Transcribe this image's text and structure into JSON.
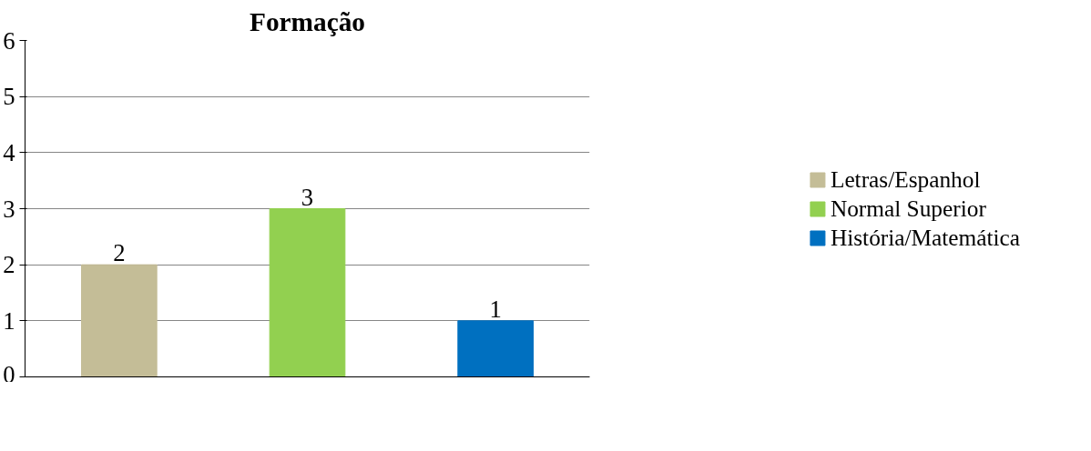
{
  "chart_data": {
    "type": "bar",
    "title": "Formação",
    "categories": [
      null,
      null,
      null
    ],
    "series": [
      {
        "name": "Letras/Espanhol",
        "color": "#c4bd97",
        "values": [
          2,
          null,
          null
        ]
      },
      {
        "name": "Normal Superior",
        "color": "#92d050",
        "values": [
          null,
          3,
          null
        ]
      },
      {
        "name": "História/Matemática",
        "color": "#0070c0",
        "values": [
          null,
          null,
          1
        ]
      }
    ],
    "ylim": [
      0,
      6
    ],
    "yticks": [
      0,
      1,
      2,
      3,
      4,
      5,
      6
    ],
    "grid": "y",
    "legend": "right",
    "data_labels": true
  }
}
